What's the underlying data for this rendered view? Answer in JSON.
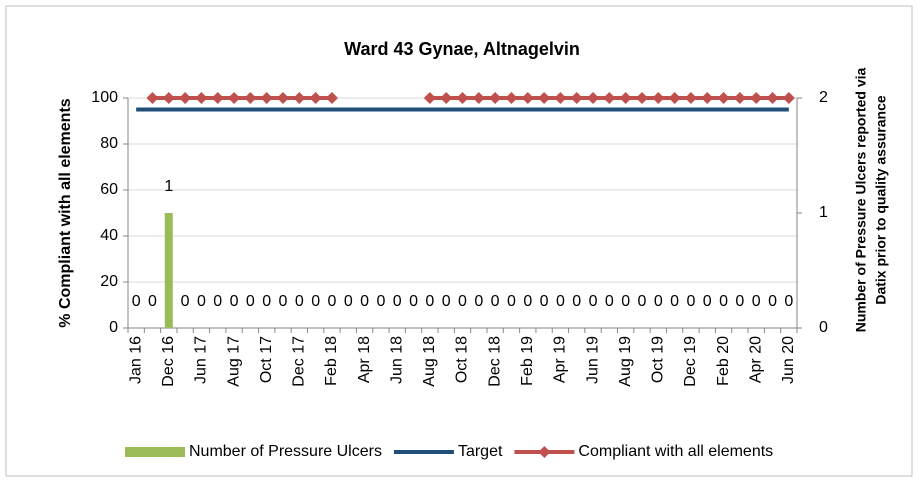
{
  "chart_data": {
    "type": "combo",
    "title": "Ward 43 Gynae, Altnagelvin",
    "ylabel": "% Compliant with all elements",
    "y2label": [
      "Number of Pressure Ulcers reported via",
      "Datix prior to quality assurance"
    ],
    "categories": [
      "Jan 16",
      null,
      "Dec 16",
      null,
      "Jun 17",
      null,
      "Aug 17",
      null,
      "Oct 17",
      null,
      "Dec 17",
      null,
      "Feb 18",
      null,
      "Apr 18",
      null,
      "Jun 18",
      null,
      "Aug 18",
      null,
      "Oct 18",
      null,
      "Dec 18",
      null,
      "Feb 19",
      null,
      "Apr 19",
      null,
      "Jun 19",
      null,
      "Aug 19",
      null,
      "Oct 19",
      null,
      "Dec 19",
      null,
      "Feb 20",
      null,
      "Apr 20",
      null,
      "Jun 20"
    ],
    "series": [
      {
        "name": "Number of Pressure Ulcers",
        "kind": "bar",
        "axis": "y2",
        "color": "#9bbb59",
        "values": [
          0,
          0,
          1,
          0,
          0,
          0,
          0,
          0,
          0,
          0,
          0,
          0,
          0,
          0,
          0,
          0,
          0,
          0,
          0,
          0,
          0,
          0,
          0,
          0,
          0,
          0,
          0,
          0,
          0,
          0,
          0,
          0,
          0,
          0,
          0,
          0,
          0,
          0,
          0,
          0,
          0
        ]
      },
      {
        "name": "Target",
        "kind": "line",
        "color": "#1f4e79",
        "marker": false,
        "values": [
          95,
          95,
          95,
          95,
          95,
          95,
          95,
          95,
          95,
          95,
          95,
          95,
          95,
          95,
          95,
          95,
          95,
          95,
          95,
          95,
          95,
          95,
          95,
          95,
          95,
          95,
          95,
          95,
          95,
          95,
          95,
          95,
          95,
          95,
          95,
          95,
          95,
          95,
          95,
          95,
          95
        ]
      },
      {
        "name": "Compliant with all elements",
        "kind": "line",
        "color": "#c0504d",
        "marker": true,
        "values": [
          null,
          100,
          100,
          100,
          100,
          100,
          100,
          100,
          100,
          100,
          100,
          100,
          100,
          null,
          null,
          null,
          null,
          null,
          100,
          100,
          100,
          100,
          100,
          100,
          100,
          100,
          100,
          100,
          100,
          100,
          100,
          100,
          100,
          100,
          100,
          100,
          100,
          100,
          100,
          100,
          100
        ]
      }
    ],
    "ylim": [
      0,
      100
    ],
    "yticks": [
      0,
      20,
      40,
      60,
      80,
      100
    ],
    "y2lim": [
      0,
      2
    ],
    "y2ticks": [
      0,
      1,
      2
    ],
    "grid": true,
    "legend": "bottom"
  }
}
